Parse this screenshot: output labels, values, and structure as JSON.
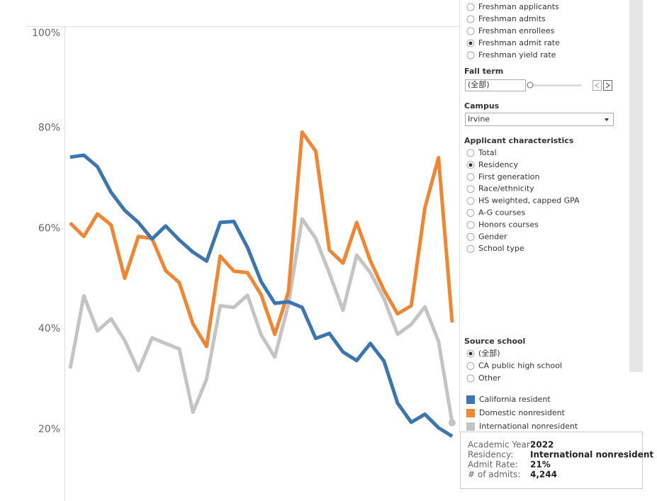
{
  "chart_data": {
    "type": "line",
    "categories": [
      null,
      null,
      null,
      null,
      null,
      null,
      null,
      null,
      null,
      null,
      null,
      null,
      null,
      null,
      null,
      null,
      null,
      null,
      null,
      null,
      null,
      null,
      null,
      null,
      null,
      null,
      null,
      null,
      null
    ],
    "series": [
      {
        "name": "California resident",
        "color": "#3b76af",
        "values": [
          74.2,
          74.6,
          72.3,
          67.2,
          63.6,
          61.2,
          57.9,
          60.5,
          57.7,
          55.3,
          53.5,
          61.2,
          61.4,
          56.2,
          49.4,
          45.1,
          45.4,
          44.3,
          38.1,
          39.1,
          35.4,
          33.7,
          37.1,
          33.6,
          25.2,
          21.4,
          23.0,
          20.3,
          18.6
        ]
      },
      {
        "name": "Domestic nonresident",
        "color": "#ef8633",
        "values": [
          61.1,
          58.4,
          62.9,
          60.7,
          50.1,
          58.4,
          58.0,
          51.6,
          49.2,
          41.0,
          36.5,
          54.5,
          51.5,
          51.2,
          46.8,
          38.9,
          47.4,
          79.2,
          75.4,
          55.7,
          53.1,
          61.2,
          53.6,
          47.7,
          43.0,
          44.6,
          64.1,
          74.1,
          41.3
        ]
      },
      {
        "name": "International nonresident",
        "color": "#c4c4c4",
        "values": [
          32.1,
          46.6,
          39.6,
          42.0,
          37.7,
          31.7,
          38.2,
          37.1,
          36.0,
          23.4,
          30.0,
          44.6,
          44.3,
          46.7,
          38.8,
          34.4,
          44.9,
          61.9,
          58.0,
          51.1,
          43.7,
          54.7,
          51.2,
          46.0,
          38.9,
          40.9,
          44.4,
          37.5,
          21.3
        ]
      }
    ],
    "ylim": [
      6,
      100
    ],
    "yticks": [
      {
        "value": 20,
        "label": "20%"
      },
      {
        "value": 40,
        "label": "40%"
      },
      {
        "value": 60,
        "label": "60%"
      },
      {
        "value": 80,
        "label": "80%"
      },
      {
        "value": 100,
        "label": "100%"
      }
    ],
    "grid": false
  },
  "measure_options": {
    "items": [
      "Freshman applicants",
      "Freshman admits",
      "Freshman enrollees",
      "Freshman admit rate",
      "Freshman yield rate"
    ],
    "selected": 3
  },
  "fall_term": {
    "title": "Fall term",
    "value": "(全部)"
  },
  "campus": {
    "title": "Campus",
    "value": "Irvine"
  },
  "applicant_characteristics": {
    "title": "Applicant characteristics",
    "items": [
      "Total",
      "Residency",
      "First generation",
      "Race/ethnicity",
      "HS weighted, capped GPA",
      "A-G courses",
      "Honors courses",
      "Gender",
      "School type"
    ],
    "selected": 1
  },
  "source_school": {
    "title": "Source school",
    "items": [
      "(全部)",
      "CA public high school",
      "Other"
    ],
    "selected": 0
  },
  "tooltip": {
    "rows": [
      [
        "Academic Year:",
        "2022"
      ],
      [
        "Residency:",
        "International nonresident"
      ],
      [
        "Admit Rate:",
        "21%"
      ],
      [
        "# of admits:",
        "4,244"
      ]
    ]
  }
}
